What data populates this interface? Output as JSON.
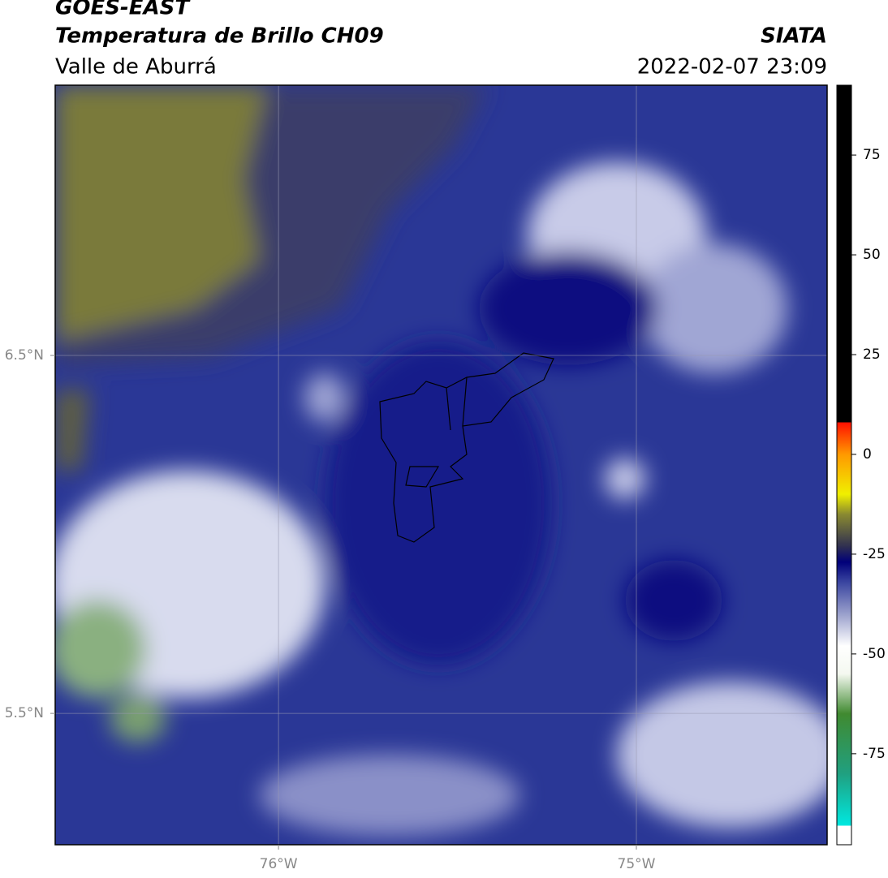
{
  "title": "GOES-EAST",
  "subtitle": "Temperatura de Brillo CH09",
  "source": "SIATA",
  "region": "Valle de Aburrá",
  "datetime": "2022-02-07 23:09",
  "map": {
    "xlim": [
      -76.624,
      -74.467
    ],
    "ylim": [
      5.133,
      7.255
    ],
    "xticks": [
      {
        "value": -76,
        "label": "76°W"
      },
      {
        "value": -75,
        "label": "75°W"
      }
    ],
    "yticks": [
      {
        "value": 6.5,
        "label": "6.5°N"
      },
      {
        "value": 5.5,
        "label": "5.5°N"
      }
    ],
    "grid": true
  },
  "colorbar": {
    "lim": [
      -97.8,
      92.5
    ],
    "ticks": [
      75,
      50,
      25,
      0,
      -25,
      -50,
      -75
    ],
    "stops": [
      {
        "value": -97.8,
        "color": "#ffffff"
      },
      {
        "value": -93,
        "color": "#ffffff"
      },
      {
        "value": -93,
        "color": "#00e8e0"
      },
      {
        "value": -80,
        "color": "#20a080"
      },
      {
        "value": -65,
        "color": "#408a30"
      },
      {
        "value": -55,
        "color": "#f4f8f0"
      },
      {
        "value": -48,
        "color": "#ffffff"
      },
      {
        "value": -40,
        "color": "#9aa0cc"
      },
      {
        "value": -32,
        "color": "#3a45a0"
      },
      {
        "value": -27,
        "color": "#00007a"
      },
      {
        "value": -23,
        "color": "#303050"
      },
      {
        "value": -15,
        "color": "#8a8a30"
      },
      {
        "value": -10,
        "color": "#f0f000"
      },
      {
        "value": 0,
        "color": "#ff9900"
      },
      {
        "value": 8,
        "color": "#ff1000"
      },
      {
        "value": 8,
        "color": "#000000"
      },
      {
        "value": 92.5,
        "color": "#000000"
      }
    ]
  }
}
